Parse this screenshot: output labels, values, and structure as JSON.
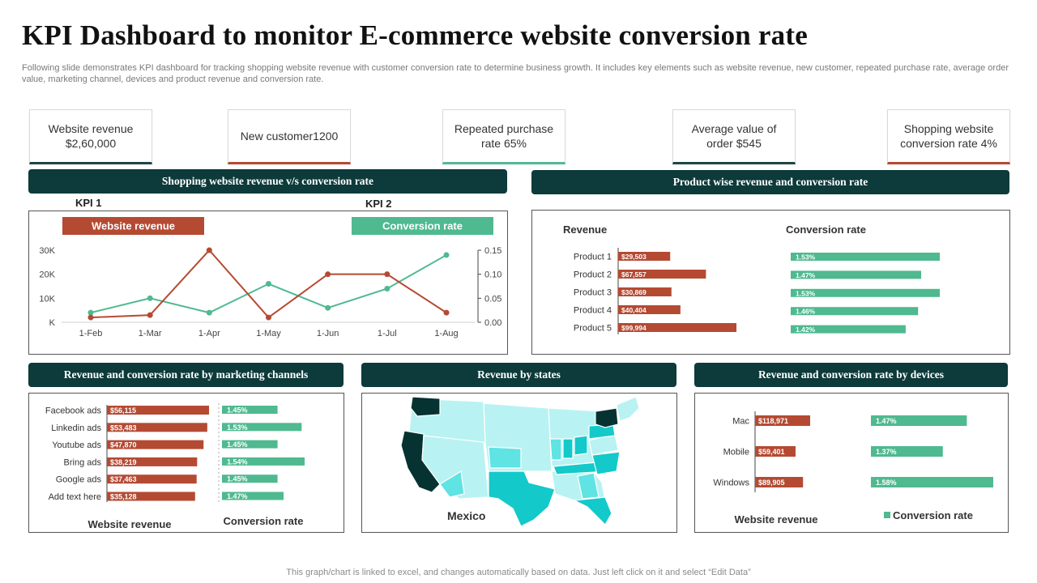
{
  "page": {
    "title": "KPI Dashboard to monitor E-commerce website conversion rate",
    "subtitle": "Following slide demonstrates KPI dashboard for tracking shopping website revenue with customer conversion rate to determine business growth. It includes key elements such as website revenue, new customer, repeated purchase rate, average order value,  marketing channel, devices and product revenue and conversion rate.",
    "footer": "This graph/chart is linked to excel,  and changes automatically based on data. Just left click on it and select “Edit Data”"
  },
  "kpis": [
    {
      "label": "Website revenue $2,60,000"
    },
    {
      "label": "New customer1200"
    },
    {
      "label": "Repeated purchase rate 65%"
    },
    {
      "label": "Average value of order $545"
    },
    {
      "label": "Shopping website conversion rate 4%"
    }
  ],
  "sections": {
    "line_chart": "Shopping website revenue v/s conversion rate",
    "product": "Product wise revenue and conversion rate",
    "channels": "Revenue and conversion rate by marketing channels",
    "states": "Revenue by states",
    "devices": "Revenue and conversion rate by devices"
  },
  "line_panel": {
    "kpi1": "KPI 1",
    "kpi2": "KPI 2",
    "legend_revenue": "Website revenue",
    "legend_conversion": "Conversion rate"
  },
  "map_panel": {
    "label": "Mexico"
  },
  "colors": {
    "revenue": "#b54a33",
    "conversion": "#4fb990",
    "dark_band": "#0d3a3a",
    "map_light": "#b9f2f2",
    "map_mid": "#5fe3e3",
    "map_strong": "#14c9c9",
    "map_dark": "#063232"
  },
  "chart_data": [
    {
      "type": "line",
      "title": "Shopping website revenue v/s conversion rate",
      "x": [
        "1-Feb",
        "1-Mar",
        "1-Apr",
        "1-May",
        "1-Jun",
        "1-Jul",
        "1-Aug"
      ],
      "y_left_ticks": [
        "K",
        "10K",
        "20K",
        "30K"
      ],
      "y_right_ticks": [
        "0.00",
        "0.05",
        "0.10",
        "0.15"
      ],
      "ylim_left": [
        0,
        30000
      ],
      "ylim_right": [
        0,
        0.15
      ],
      "series": [
        {
          "name": "Website revenue",
          "axis": "left",
          "values": [
            2000,
            3000,
            30000,
            2000,
            20000,
            20000,
            4000
          ]
        },
        {
          "name": "Conversion rate",
          "axis": "right",
          "values": [
            0.02,
            0.05,
            0.02,
            0.08,
            0.03,
            0.07,
            0.14
          ]
        }
      ]
    },
    {
      "type": "bar",
      "title": "Product wise revenue and conversion rate",
      "categories": [
        "Product 1",
        "Product 2",
        "Product 3",
        "Product 4",
        "Product 5"
      ],
      "series": [
        {
          "name": "Revenue",
          "values": [
            29503,
            67557,
            30869,
            40404,
            99994
          ],
          "labels": [
            "$29,503",
            "$67,557",
            "$30,869",
            "$40,404",
            "$99,994"
          ]
        },
        {
          "name": "Conversion rate",
          "values": [
            1.53,
            1.47,
            1.53,
            1.46,
            1.42
          ],
          "labels": [
            "1.53%",
            "1.47%",
            "1.53%",
            "1.46%",
            "1.42%"
          ]
        }
      ]
    },
    {
      "type": "bar",
      "title": "Revenue and conversion rate by marketing channels",
      "categories": [
        "Facebook ads",
        "Linkedin ads",
        "Youtube ads",
        "Bring ads",
        "Google ads",
        "Add text here"
      ],
      "series": [
        {
          "name": "Website revenue",
          "values": [
            56115,
            53483,
            47870,
            38219,
            37463,
            35128
          ],
          "labels": [
            "$56,115",
            "$53,483",
            "$47,870",
            "$38,219",
            "$37,463",
            "$35,128"
          ]
        },
        {
          "name": "Conversion rate",
          "values": [
            1.45,
            1.53,
            1.45,
            1.54,
            1.45,
            1.47
          ],
          "labels": [
            "1.45%",
            "1.53%",
            "1.45%",
            "1.54%",
            "1.45%",
            "1.47%"
          ]
        }
      ]
    },
    {
      "type": "bar",
      "title": "Revenue and conversion rate by devices",
      "categories": [
        "Mac",
        "Mobile",
        "Windows"
      ],
      "series": [
        {
          "name": "Website revenue",
          "values": [
            118971,
            59401,
            89905
          ],
          "labels": [
            "$118,971",
            "$59,401",
            "$89,905"
          ]
        },
        {
          "name": "Conversion rate",
          "values": [
            1.47,
            1.37,
            1.58
          ],
          "labels": [
            "1.47%",
            "1.37%",
            "1.58%"
          ]
        }
      ]
    }
  ]
}
